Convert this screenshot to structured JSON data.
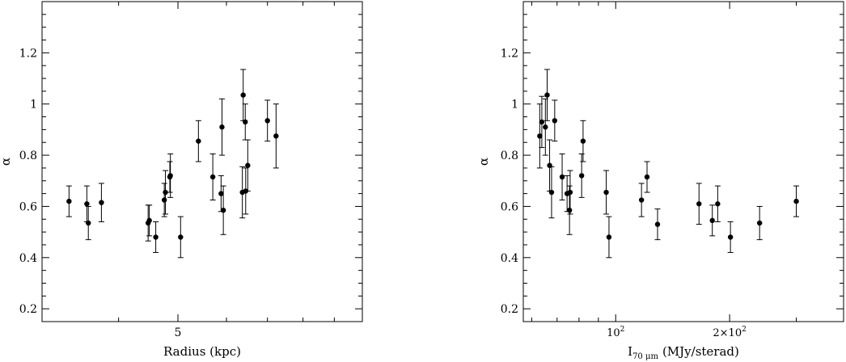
{
  "chart_data": [
    {
      "type": "scatter",
      "xlabel": "Radius (kpc)",
      "ylabel": "α",
      "x_scale": "log",
      "xlim": [
        3.0,
        10.0
      ],
      "ylim": [
        0.15,
        1.4
      ],
      "y_ticks": [
        0.2,
        0.4,
        0.6,
        0.8,
        1.0,
        1.2
      ],
      "y_tick_labels": [
        "0.2",
        "0.4",
        "0.6",
        "0.8",
        "1",
        "1.2"
      ],
      "x_major_ticks": [
        5
      ],
      "x_tick_labels": [
        "5"
      ],
      "x_minor_ticks": [
        4,
        6,
        7,
        8,
        9
      ],
      "points": [
        {
          "x": 3.32,
          "y": 0.62,
          "err": 0.06
        },
        {
          "x": 3.55,
          "y": 0.61,
          "err": 0.07
        },
        {
          "x": 3.57,
          "y": 0.535,
          "err": 0.065
        },
        {
          "x": 3.75,
          "y": 0.615,
          "err": 0.075
        },
        {
          "x": 4.47,
          "y": 0.535,
          "err": 0.07
        },
        {
          "x": 4.49,
          "y": 0.545,
          "err": 0.06
        },
        {
          "x": 4.6,
          "y": 0.48,
          "err": 0.06
        },
        {
          "x": 4.75,
          "y": 0.625,
          "err": 0.065
        },
        {
          "x": 4.77,
          "y": 0.655,
          "err": 0.085
        },
        {
          "x": 4.85,
          "y": 0.715,
          "err": 0.06
        },
        {
          "x": 4.86,
          "y": 0.72,
          "err": 0.085
        },
        {
          "x": 5.05,
          "y": 0.48,
          "err": 0.08
        },
        {
          "x": 5.4,
          "y": 0.855,
          "err": 0.08
        },
        {
          "x": 5.7,
          "y": 0.715,
          "err": 0.09
        },
        {
          "x": 5.88,
          "y": 0.65,
          "err": 0.07
        },
        {
          "x": 5.9,
          "y": 0.91,
          "err": 0.11
        },
        {
          "x": 5.93,
          "y": 0.585,
          "err": 0.095
        },
        {
          "x": 6.37,
          "y": 0.655,
          "err": 0.1
        },
        {
          "x": 6.39,
          "y": 1.035,
          "err": 0.1
        },
        {
          "x": 6.44,
          "y": 0.93,
          "err": 0.07
        },
        {
          "x": 6.45,
          "y": 0.66,
          "err": 0.09
        },
        {
          "x": 6.5,
          "y": 0.76,
          "err": 0.1
        },
        {
          "x": 7.0,
          "y": 0.935,
          "err": 0.08
        },
        {
          "x": 7.23,
          "y": 0.875,
          "err": 0.125
        }
      ]
    },
    {
      "type": "scatter",
      "xlabel_main": "I",
      "xlabel_sub": "70 μm",
      "xlabel_rest": "(MJy/sterad)",
      "ylabel": "α",
      "x_scale": "log",
      "xlim": [
        57,
        400
      ],
      "ylim": [
        0.15,
        1.4
      ],
      "y_ticks": [
        0.2,
        0.4,
        0.6,
        0.8,
        1.0,
        1.2
      ],
      "y_tick_labels": [
        "0.2",
        "0.4",
        "0.6",
        "0.8",
        "1",
        "1.2"
      ],
      "x_major_ticks": [
        100,
        200
      ],
      "x_tick_labels": [
        {
          "base": "10",
          "sup": "2"
        },
        {
          "base": "2×10",
          "sup": "2"
        }
      ],
      "x_minor_ticks": [
        60,
        70,
        80,
        90,
        300,
        400
      ],
      "points": [
        {
          "x": 63.0,
          "y": 0.875,
          "err": 0.125
        },
        {
          "x": 63.8,
          "y": 0.93,
          "err": 0.1
        },
        {
          "x": 65.2,
          "y": 0.91,
          "err": 0.11
        },
        {
          "x": 65.9,
          "y": 1.035,
          "err": 0.1
        },
        {
          "x": 66.9,
          "y": 0.76,
          "err": 0.1
        },
        {
          "x": 67.7,
          "y": 0.655,
          "err": 0.1
        },
        {
          "x": 69.0,
          "y": 0.935,
          "err": 0.08
        },
        {
          "x": 72.2,
          "y": 0.715,
          "err": 0.09
        },
        {
          "x": 74.4,
          "y": 0.65,
          "err": 0.07
        },
        {
          "x": 75.5,
          "y": 0.585,
          "err": 0.095
        },
        {
          "x": 75.8,
          "y": 0.655,
          "err": 0.085
        },
        {
          "x": 81.3,
          "y": 0.72,
          "err": 0.085
        },
        {
          "x": 82.0,
          "y": 0.855,
          "err": 0.08
        },
        {
          "x": 94.4,
          "y": 0.655,
          "err": 0.085
        },
        {
          "x": 96.0,
          "y": 0.48,
          "err": 0.08
        },
        {
          "x": 117.0,
          "y": 0.625,
          "err": 0.065
        },
        {
          "x": 121.0,
          "y": 0.715,
          "err": 0.06
        },
        {
          "x": 129.0,
          "y": 0.53,
          "err": 0.06
        },
        {
          "x": 166.0,
          "y": 0.61,
          "err": 0.08
        },
        {
          "x": 180.0,
          "y": 0.545,
          "err": 0.06
        },
        {
          "x": 186.0,
          "y": 0.61,
          "err": 0.07
        },
        {
          "x": 201.0,
          "y": 0.48,
          "err": 0.06
        },
        {
          "x": 240.0,
          "y": 0.535,
          "err": 0.065
        },
        {
          "x": 300.0,
          "y": 0.62,
          "err": 0.06
        }
      ]
    }
  ]
}
